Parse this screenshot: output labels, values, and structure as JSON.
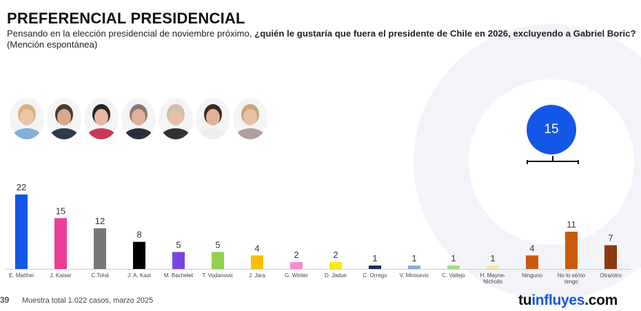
{
  "header": {
    "title": "PREFERENCIAL PRESIDENCIAL",
    "subtitle_plain": "Pensando en la elección presidencial de noviembre próximo, ",
    "subtitle_bold": "¿quién le gustaría que fuera el presidente de Chile en 2026, excluyendo a Gabriel Boric?",
    "subtitle_tail": " (Mención espontánea)"
  },
  "bracket": {
    "value": "15",
    "color": "#1457e6"
  },
  "footer": {
    "page_number": "39",
    "note": "Muestra total 1.022 casos, marzo 2025",
    "brand_prefix": "tu",
    "brand_accent": "influyes",
    "brand_suffix": ".com"
  },
  "avatars": [
    {
      "name": "matthei-photo",
      "hair": "#d8b27a",
      "skin": "#eec4a6",
      "shirt": "#7fb0d6"
    },
    {
      "name": "kaiser-photo",
      "hair": "#4a3a2e",
      "skin": "#d9a88a",
      "shirt": "#2d3a52"
    },
    {
      "name": "toha-photo",
      "hair": "#2b2222",
      "skin": "#e8b8a0",
      "shirt": "#c93a5a"
    },
    {
      "name": "kast-photo",
      "hair": "#8a7a70",
      "skin": "#e0b098",
      "shirt": "#2a2f3a"
    },
    {
      "name": "bachelet-photo",
      "hair": "#d0c0a8",
      "skin": "#e8c0a8",
      "shirt": "#333333"
    },
    {
      "name": "vodanovic-photo",
      "hair": "#3a2c22",
      "skin": "#e2b294",
      "shirt": "#eeeeee"
    },
    {
      "name": "jara-photo",
      "hair": "#c8a878",
      "skin": "#eac0a2",
      "shirt": "#b0a0a0"
    }
  ],
  "chart_data": {
    "type": "bar",
    "categories": [
      "E. Matthei",
      "J. Kaiser",
      "C.Tohá",
      "J. A. Kast",
      "M. Bachelet",
      "T. Vodanovic",
      "J. Jara",
      "G. Winter",
      "D. Jadue",
      "C. Orrego",
      "V. Mirosevic",
      "C. Vallejo",
      "H. Mayne-Nicholls",
      "Ninguno",
      "No lo sé/no tengo",
      "Otra/otro"
    ],
    "category_lines": [
      [
        "E. Matthei"
      ],
      [
        "J. Kaiser"
      ],
      [
        "C.Tohá"
      ],
      [
        "J. A. Kast"
      ],
      [
        "M. Bachelet"
      ],
      [
        "T. Vodanovic"
      ],
      [
        "J. Jara"
      ],
      [
        "G. Winter"
      ],
      [
        "D. Jadue"
      ],
      [
        "C. Orrego"
      ],
      [
        "V. Mirosevic"
      ],
      [
        "C. Vallejo"
      ],
      [
        "H. Mayne-",
        "Nicholls"
      ],
      [
        "Ninguno"
      ],
      [
        "No lo sé/no",
        "tengo"
      ],
      [
        "Otra/otro"
      ]
    ],
    "values": [
      22,
      15,
      12,
      8,
      5,
      5,
      4,
      2,
      2,
      1,
      1,
      1,
      1,
      4,
      11,
      7
    ],
    "colors": [
      "#1457e6",
      "#ee3d96",
      "#777777",
      "#000000",
      "#7a44e4",
      "#8fd24e",
      "#f6c000",
      "#f78ad2",
      "#f6ea10",
      "#182b5a",
      "#8da8e0",
      "#9edd86",
      "#f6e7a4",
      "#c85a14",
      "#c85a0a",
      "#8a3a0e"
    ],
    "ylim": [
      0,
      22
    ],
    "grid": false,
    "legend": "none"
  }
}
